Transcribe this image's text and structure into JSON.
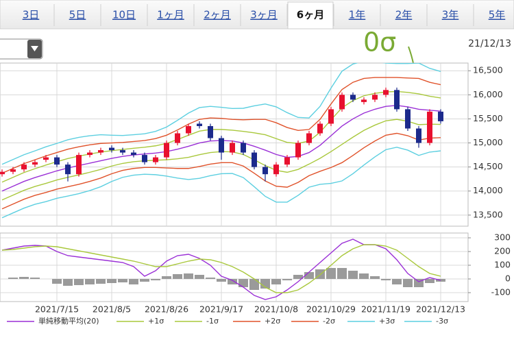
{
  "tabs": [
    "3日",
    "5日",
    "10日",
    "1ヶ月",
    "2ヶ月",
    "3ヶ月",
    "6ヶ月",
    "1年",
    "2年",
    "3年",
    "5年"
  ],
  "selected_tab": 6,
  "date": "21/12/13",
  "annotation": "0σ",
  "chart_data": [
    {
      "type": "candlestick",
      "categories": [
        null,
        null,
        null,
        null,
        null,
        "2021/7/15",
        null,
        null,
        null,
        null,
        "2021/8/5",
        null,
        null,
        null,
        null,
        "2021/8/26",
        null,
        null,
        null,
        null,
        "2021/9/17",
        null,
        null,
        null,
        null,
        "2021/10/8",
        null,
        null,
        null,
        null,
        "2021/10/29",
        null,
        null,
        null,
        null,
        "2021/11/19",
        null,
        null,
        null,
        null,
        "2021/12/13"
      ],
      "open": [
        14350,
        14400,
        14450,
        14550,
        14650,
        14700,
        14550,
        14350,
        14750,
        14800,
        14900,
        14850,
        14800,
        14750,
        14600,
        14700,
        15000,
        15200,
        15400,
        15350,
        15100,
        14800,
        15000,
        14800,
        14500,
        14350,
        14550,
        14700,
        15000,
        15200,
        15400,
        15700,
        16000,
        15850,
        15900,
        16000,
        16100,
        15700,
        15300,
        15000,
        15650
      ],
      "high": [
        14450,
        14500,
        14600,
        14650,
        14750,
        14750,
        14600,
        14800,
        14850,
        14900,
        14950,
        14900,
        14850,
        14800,
        14750,
        15050,
        15250,
        15400,
        15450,
        15400,
        15150,
        15050,
        15050,
        14850,
        14550,
        14600,
        14750,
        15050,
        15250,
        15450,
        15750,
        16050,
        16050,
        15950,
        16050,
        16150,
        16150,
        15750,
        15350,
        15700,
        15700
      ],
      "low": [
        14300,
        14350,
        14400,
        14500,
        14600,
        14500,
        14200,
        14300,
        14700,
        14750,
        14800,
        14750,
        14700,
        14550,
        14550,
        14650,
        14950,
        15150,
        15300,
        15050,
        14650,
        14750,
        14750,
        14450,
        14200,
        14300,
        14500,
        14650,
        14950,
        15150,
        15350,
        15650,
        15850,
        15800,
        15850,
        15950,
        15650,
        15250,
        14900,
        14950,
        15400
      ],
      "close": [
        14400,
        14450,
        14550,
        14600,
        14700,
        14550,
        14350,
        14750,
        14800,
        14850,
        14850,
        14800,
        14750,
        14600,
        14700,
        15000,
        15200,
        15350,
        15350,
        15100,
        14800,
        15000,
        14800,
        14500,
        14350,
        14550,
        14700,
        15000,
        15200,
        15400,
        15700,
        16000,
        15900,
        15900,
        16000,
        16100,
        15700,
        15300,
        15000,
        15650,
        15450
      ],
      "up_color": "#e8102e",
      "down_color": "#1c2a8c",
      "series": [
        {
          "name": "単純移動平均(20)",
          "color": "#9a2fd6",
          "values": [
            14000,
            14100,
            14200,
            14280,
            14350,
            14420,
            14480,
            14530,
            14580,
            14630,
            14680,
            14720,
            14750,
            14770,
            14790,
            14820,
            14870,
            14930,
            15000,
            15040,
            15050,
            15040,
            15000,
            14930,
            14850,
            14760,
            14700,
            14720,
            14800,
            14950,
            15150,
            15350,
            15500,
            15620,
            15700,
            15760,
            15780,
            15750,
            15700,
            15680,
            15660
          ]
        },
        {
          "name": "+1σ",
          "color": "#a9c83c",
          "values": [
            14185,
            14285,
            14385,
            14465,
            14540,
            14610,
            14675,
            14725,
            14770,
            14810,
            14840,
            14865,
            14890,
            14910,
            14940,
            14990,
            15070,
            15160,
            15245,
            15280,
            15280,
            15265,
            15240,
            15210,
            15170,
            15090,
            15010,
            14990,
            15040,
            15220,
            15480,
            15730,
            15880,
            15980,
            16030,
            16060,
            16070,
            16050,
            16020,
            15970,
            15935
          ]
        },
        {
          "name": "-1σ",
          "color": "#a9c83c",
          "values": [
            13815,
            13915,
            14015,
            14095,
            14160,
            14230,
            14285,
            14335,
            14390,
            14450,
            14520,
            14575,
            14610,
            14630,
            14640,
            14650,
            14670,
            14700,
            14755,
            14800,
            14820,
            14815,
            14760,
            14650,
            14530,
            14430,
            14390,
            14450,
            14560,
            14680,
            14820,
            14970,
            15120,
            15260,
            15370,
            15460,
            15490,
            15450,
            15380,
            15390,
            15385
          ]
        },
        {
          "name": "+2σ",
          "color": "#e0522a",
          "values": [
            14370,
            14470,
            14570,
            14650,
            14730,
            14800,
            14870,
            14920,
            14960,
            14990,
            15000,
            15010,
            15030,
            15050,
            15090,
            15160,
            15270,
            15390,
            15490,
            15520,
            15510,
            15490,
            15480,
            15490,
            15490,
            15420,
            15320,
            15260,
            15280,
            15490,
            15810,
            16110,
            16260,
            16340,
            16360,
            16360,
            16360,
            16350,
            16340,
            16260,
            16210
          ]
        },
        {
          "name": "-2σ",
          "color": "#e0522a",
          "values": [
            13630,
            13730,
            13830,
            13910,
            13970,
            14040,
            14090,
            14140,
            14200,
            14270,
            14360,
            14430,
            14470,
            14490,
            14490,
            14480,
            14470,
            14470,
            14510,
            14560,
            14590,
            14590,
            14520,
            14370,
            14210,
            14100,
            14080,
            14180,
            14320,
            14410,
            14490,
            14590,
            14740,
            14900,
            15040,
            15160,
            15200,
            15150,
            15060,
            15100,
            15110
          ]
        },
        {
          "name": "+3σ",
          "color": "#5ccfe0",
          "values": [
            14555,
            14655,
            14755,
            14835,
            14920,
            14990,
            15065,
            15115,
            15150,
            15170,
            15160,
            15155,
            15170,
            15190,
            15240,
            15330,
            15470,
            15620,
            15735,
            15760,
            15740,
            15715,
            15720,
            15770,
            15810,
            15750,
            15630,
            15530,
            15520,
            15760,
            16140,
            16490,
            16640,
            16700,
            16690,
            16660,
            16650,
            16650,
            16660,
            16550,
            16485
          ]
        },
        {
          "name": "-3σ",
          "color": "#5ccfe0",
          "values": [
            13445,
            13545,
            13645,
            13725,
            13780,
            13850,
            13895,
            13945,
            14010,
            14090,
            14200,
            14285,
            14330,
            14350,
            14340,
            14310,
            14270,
            14240,
            14265,
            14320,
            14360,
            14365,
            14280,
            14090,
            13890,
            13770,
            13770,
            13910,
            14080,
            14140,
            14160,
            14210,
            14360,
            14540,
            14710,
            14860,
            14910,
            14850,
            14740,
            14810,
            14835
          ]
        }
      ],
      "ylim": [
        13270,
        16660
      ],
      "yticks": [
        {
          "value": 16500,
          "label": "16,500"
        },
        {
          "value": 16000,
          "label": "16,000"
        },
        {
          "value": 15500,
          "label": "15,500"
        },
        {
          "value": 15000,
          "label": "15,000"
        },
        {
          "value": 14500,
          "label": "14,500"
        },
        {
          "value": 14000,
          "label": "14,000"
        },
        {
          "value": 13500,
          "label": "13,500"
        }
      ],
      "grid": true
    },
    {
      "type": "macd",
      "series": [
        {
          "color": "#9a2fd6",
          "values": [
            210,
            225,
            240,
            245,
            240,
            200,
            170,
            160,
            150,
            140,
            130,
            120,
            90,
            20,
            60,
            130,
            170,
            180,
            150,
            100,
            20,
            -10,
            -60,
            -120,
            -150,
            -130,
            -80,
            -20,
            50,
            120,
            190,
            260,
            290,
            250,
            250,
            220,
            140,
            40,
            -20,
            10,
            -10
          ]
        },
        {
          "color": "#a9c83c",
          "values": [
            210,
            215,
            225,
            235,
            240,
            235,
            220,
            205,
            190,
            175,
            160,
            145,
            130,
            110,
            90,
            90,
            110,
            130,
            145,
            140,
            120,
            90,
            50,
            0,
            -60,
            -100,
            -100,
            -80,
            -30,
            30,
            100,
            170,
            220,
            250,
            250,
            240,
            210,
            150,
            90,
            40,
            20
          ]
        }
      ],
      "histogram": {
        "color": "#9a9a9a",
        "values": [
          0,
          10,
          15,
          10,
          0,
          -35,
          -50,
          -45,
          -40,
          -35,
          -30,
          -25,
          -40,
          -20,
          -10,
          20,
          35,
          40,
          30,
          10,
          -20,
          -40,
          -60,
          -80,
          -70,
          -40,
          -10,
          30,
          50,
          70,
          80,
          80,
          60,
          40,
          20,
          -10,
          -40,
          -60,
          -60,
          -30,
          -20
        ]
      },
      "ylim": [
        -165,
        335
      ],
      "yticks": [
        300,
        200,
        100,
        0,
        -100
      ],
      "grid": true
    }
  ]
}
